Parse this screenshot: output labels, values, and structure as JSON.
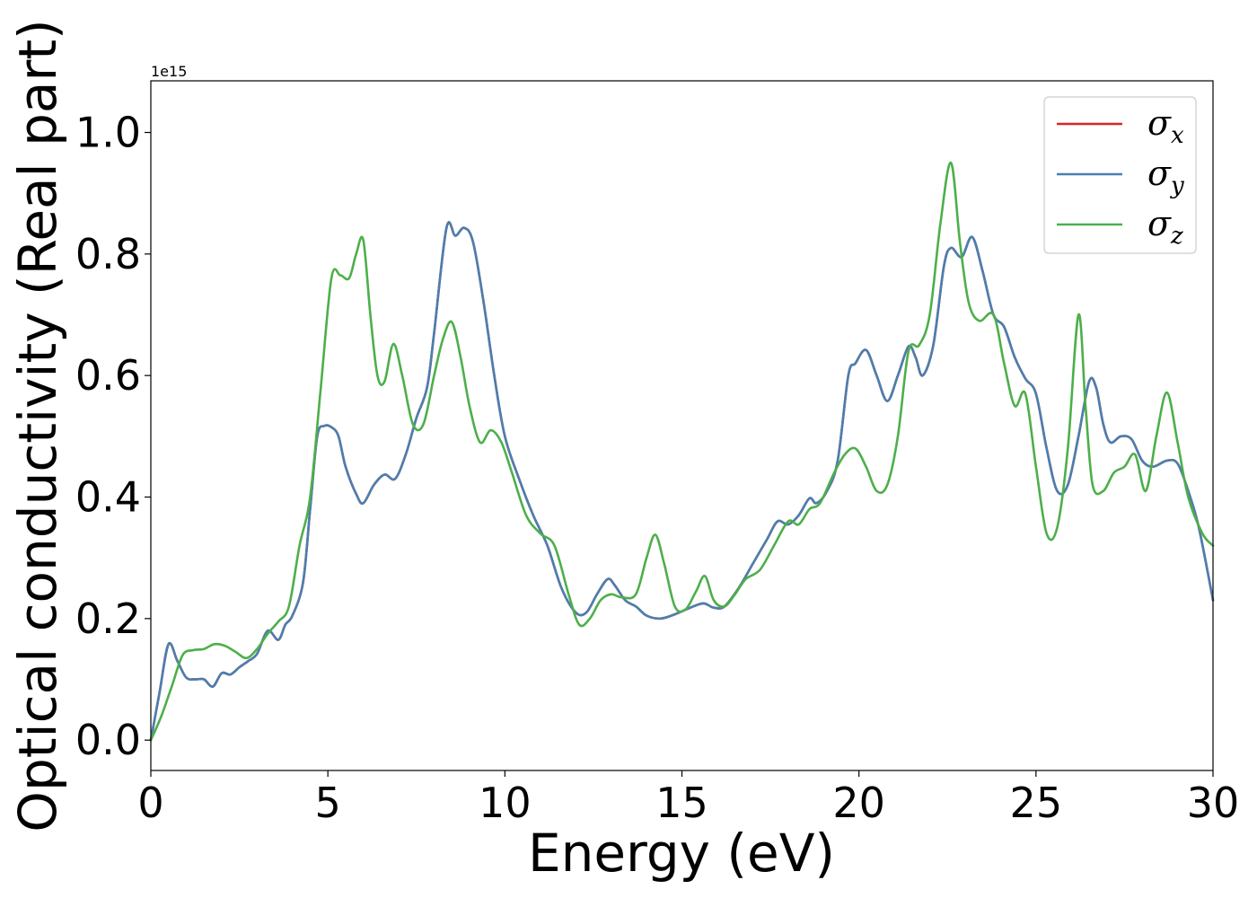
{
  "chart_data": {
    "type": "line",
    "xlabel": "Energy (eV)",
    "ylabel": "Optical conductivity (Real part)",
    "offset_label": "1e15",
    "xlim": [
      0,
      30
    ],
    "ylim": [
      -0.05,
      1.085
    ],
    "x_ticks": [
      0,
      5,
      10,
      15,
      20,
      25,
      30
    ],
    "x_tick_labels": [
      "0",
      "5",
      "10",
      "15",
      "20",
      "25",
      "30"
    ],
    "y_ticks": [
      0.0,
      0.2,
      0.4,
      0.6,
      0.8,
      1.0
    ],
    "y_tick_labels": [
      "0.0",
      "0.2",
      "0.4",
      "0.6",
      "0.8",
      "1.0"
    ],
    "grid": false,
    "legend_position": "top-right",
    "series": [
      {
        "name": "σx",
        "legend_base": "σ",
        "legend_sub": "x",
        "color": "#d62728",
        "x": [
          0,
          0.25,
          0.5,
          0.75,
          1.0,
          1.25,
          1.5,
          1.75,
          2.0,
          2.25,
          2.5,
          2.75,
          3.0,
          3.3,
          3.6,
          3.8,
          4.0,
          4.3,
          4.5,
          4.7,
          4.9,
          5.1,
          5.3,
          5.5,
          5.8,
          6.0,
          6.3,
          6.6,
          6.9,
          7.2,
          7.5,
          7.8,
          8.0,
          8.35,
          8.6,
          8.85,
          9.1,
          9.4,
          9.7,
          10.0,
          10.4,
          10.8,
          11.2,
          11.6,
          12.0,
          12.3,
          12.6,
          12.9,
          13.1,
          13.4,
          13.7,
          14.0,
          14.4,
          14.8,
          15.2,
          15.6,
          15.9,
          16.2,
          16.6,
          17.0,
          17.4,
          17.7,
          18.0,
          18.3,
          18.6,
          18.8,
          19.1,
          19.4,
          19.7,
          19.9,
          20.2,
          20.5,
          20.8,
          21.1,
          21.4,
          21.6,
          21.8,
          22.1,
          22.4,
          22.6,
          22.9,
          23.2,
          23.5,
          23.8,
          24.1,
          24.4,
          24.7,
          25.0,
          25.3,
          25.6,
          25.9,
          26.2,
          26.5,
          26.7,
          26.9,
          27.1,
          27.4,
          27.7,
          28.0,
          28.3,
          28.7,
          29.0,
          29.3,
          29.6,
          30.0
        ],
        "y": [
          0.0,
          0.08,
          0.158,
          0.13,
          0.103,
          0.1,
          0.1,
          0.088,
          0.11,
          0.108,
          0.12,
          0.13,
          0.142,
          0.18,
          0.165,
          0.19,
          0.205,
          0.26,
          0.38,
          0.5,
          0.517,
          0.515,
          0.5,
          0.45,
          0.405,
          0.39,
          0.42,
          0.437,
          0.43,
          0.47,
          0.53,
          0.58,
          0.67,
          0.843,
          0.83,
          0.843,
          0.82,
          0.72,
          0.6,
          0.5,
          0.43,
          0.37,
          0.32,
          0.25,
          0.21,
          0.21,
          0.24,
          0.265,
          0.255,
          0.23,
          0.22,
          0.205,
          0.2,
          0.207,
          0.217,
          0.225,
          0.218,
          0.22,
          0.25,
          0.29,
          0.33,
          0.36,
          0.355,
          0.37,
          0.398,
          0.39,
          0.41,
          0.46,
          0.6,
          0.62,
          0.642,
          0.6,
          0.558,
          0.6,
          0.648,
          0.63,
          0.6,
          0.65,
          0.78,
          0.81,
          0.795,
          0.828,
          0.77,
          0.7,
          0.68,
          0.63,
          0.595,
          0.57,
          0.48,
          0.41,
          0.42,
          0.5,
          0.59,
          0.58,
          0.52,
          0.49,
          0.5,
          0.495,
          0.46,
          0.45,
          0.46,
          0.455,
          0.41,
          0.35,
          0.23
        ]
      },
      {
        "name": "σy",
        "legend_base": "σ",
        "legend_sub": "y",
        "color": "#4a7fb0",
        "x": [
          0,
          0.25,
          0.5,
          0.75,
          1.0,
          1.25,
          1.5,
          1.75,
          2.0,
          2.25,
          2.5,
          2.75,
          3.0,
          3.3,
          3.6,
          3.8,
          4.0,
          4.3,
          4.5,
          4.7,
          4.9,
          5.1,
          5.3,
          5.5,
          5.8,
          6.0,
          6.3,
          6.6,
          6.9,
          7.2,
          7.5,
          7.8,
          8.0,
          8.35,
          8.6,
          8.85,
          9.1,
          9.4,
          9.7,
          10.0,
          10.4,
          10.8,
          11.2,
          11.6,
          12.0,
          12.3,
          12.6,
          12.9,
          13.1,
          13.4,
          13.7,
          14.0,
          14.4,
          14.8,
          15.2,
          15.6,
          15.9,
          16.2,
          16.6,
          17.0,
          17.4,
          17.7,
          18.0,
          18.3,
          18.6,
          18.8,
          19.1,
          19.4,
          19.7,
          19.9,
          20.2,
          20.5,
          20.8,
          21.1,
          21.4,
          21.6,
          21.8,
          22.1,
          22.4,
          22.6,
          22.9,
          23.2,
          23.5,
          23.8,
          24.1,
          24.4,
          24.7,
          25.0,
          25.3,
          25.6,
          25.9,
          26.2,
          26.5,
          26.7,
          26.9,
          27.1,
          27.4,
          27.7,
          28.0,
          28.3,
          28.7,
          29.0,
          29.3,
          29.6,
          30.0
        ],
        "y": [
          0.0,
          0.08,
          0.158,
          0.13,
          0.103,
          0.1,
          0.1,
          0.088,
          0.11,
          0.108,
          0.12,
          0.13,
          0.142,
          0.18,
          0.165,
          0.19,
          0.205,
          0.26,
          0.38,
          0.5,
          0.517,
          0.515,
          0.5,
          0.45,
          0.405,
          0.39,
          0.42,
          0.437,
          0.43,
          0.47,
          0.53,
          0.58,
          0.67,
          0.843,
          0.83,
          0.843,
          0.82,
          0.72,
          0.6,
          0.5,
          0.43,
          0.37,
          0.32,
          0.25,
          0.21,
          0.21,
          0.24,
          0.265,
          0.255,
          0.23,
          0.22,
          0.205,
          0.2,
          0.207,
          0.217,
          0.225,
          0.218,
          0.22,
          0.25,
          0.29,
          0.33,
          0.36,
          0.355,
          0.37,
          0.398,
          0.39,
          0.41,
          0.46,
          0.6,
          0.62,
          0.642,
          0.6,
          0.558,
          0.6,
          0.648,
          0.63,
          0.6,
          0.65,
          0.78,
          0.81,
          0.795,
          0.828,
          0.77,
          0.7,
          0.68,
          0.63,
          0.595,
          0.57,
          0.48,
          0.41,
          0.42,
          0.5,
          0.59,
          0.58,
          0.52,
          0.49,
          0.5,
          0.495,
          0.46,
          0.45,
          0.46,
          0.455,
          0.41,
          0.35,
          0.23
        ]
      },
      {
        "name": "σz",
        "legend_base": "σ",
        "legend_sub": "z",
        "color": "#4daf4a",
        "x": [
          0,
          0.3,
          0.6,
          0.9,
          1.2,
          1.5,
          1.8,
          2.1,
          2.4,
          2.7,
          3.0,
          3.3,
          3.6,
          3.9,
          4.2,
          4.5,
          4.8,
          5.1,
          5.35,
          5.6,
          5.8,
          6.0,
          6.2,
          6.4,
          6.6,
          6.85,
          7.1,
          7.4,
          7.7,
          8.0,
          8.25,
          8.5,
          8.75,
          9.0,
          9.3,
          9.6,
          9.9,
          10.2,
          10.6,
          11.0,
          11.4,
          11.8,
          12.1,
          12.4,
          12.7,
          13.0,
          13.3,
          13.7,
          14.0,
          14.25,
          14.5,
          14.8,
          15.1,
          15.4,
          15.65,
          15.9,
          16.2,
          16.5,
          16.8,
          17.2,
          17.6,
          18.0,
          18.3,
          18.6,
          18.9,
          19.3,
          19.6,
          19.9,
          20.2,
          20.5,
          20.8,
          21.1,
          21.4,
          21.7,
          22.0,
          22.3,
          22.6,
          22.85,
          23.1,
          23.4,
          23.8,
          24.1,
          24.4,
          24.7,
          25.0,
          25.3,
          25.6,
          25.9,
          26.2,
          26.4,
          26.6,
          26.9,
          27.2,
          27.5,
          27.8,
          28.1,
          28.4,
          28.7,
          29.0,
          29.3,
          29.7,
          30.0
        ],
        "y": [
          0.0,
          0.04,
          0.09,
          0.14,
          0.148,
          0.15,
          0.158,
          0.155,
          0.145,
          0.135,
          0.15,
          0.175,
          0.195,
          0.22,
          0.32,
          0.4,
          0.58,
          0.76,
          0.765,
          0.76,
          0.8,
          0.823,
          0.7,
          0.6,
          0.59,
          0.652,
          0.6,
          0.52,
          0.52,
          0.6,
          0.66,
          0.688,
          0.63,
          0.55,
          0.49,
          0.51,
          0.49,
          0.44,
          0.37,
          0.34,
          0.32,
          0.24,
          0.19,
          0.2,
          0.23,
          0.24,
          0.235,
          0.24,
          0.3,
          0.338,
          0.29,
          0.22,
          0.215,
          0.245,
          0.27,
          0.23,
          0.22,
          0.24,
          0.265,
          0.28,
          0.32,
          0.36,
          0.355,
          0.38,
          0.39,
          0.44,
          0.47,
          0.48,
          0.45,
          0.41,
          0.42,
          0.5,
          0.64,
          0.65,
          0.7,
          0.85,
          0.95,
          0.82,
          0.72,
          0.69,
          0.7,
          0.62,
          0.55,
          0.57,
          0.45,
          0.34,
          0.35,
          0.48,
          0.7,
          0.55,
          0.42,
          0.41,
          0.44,
          0.45,
          0.47,
          0.41,
          0.5,
          0.572,
          0.49,
          0.4,
          0.34,
          0.32
        ]
      }
    ]
  }
}
